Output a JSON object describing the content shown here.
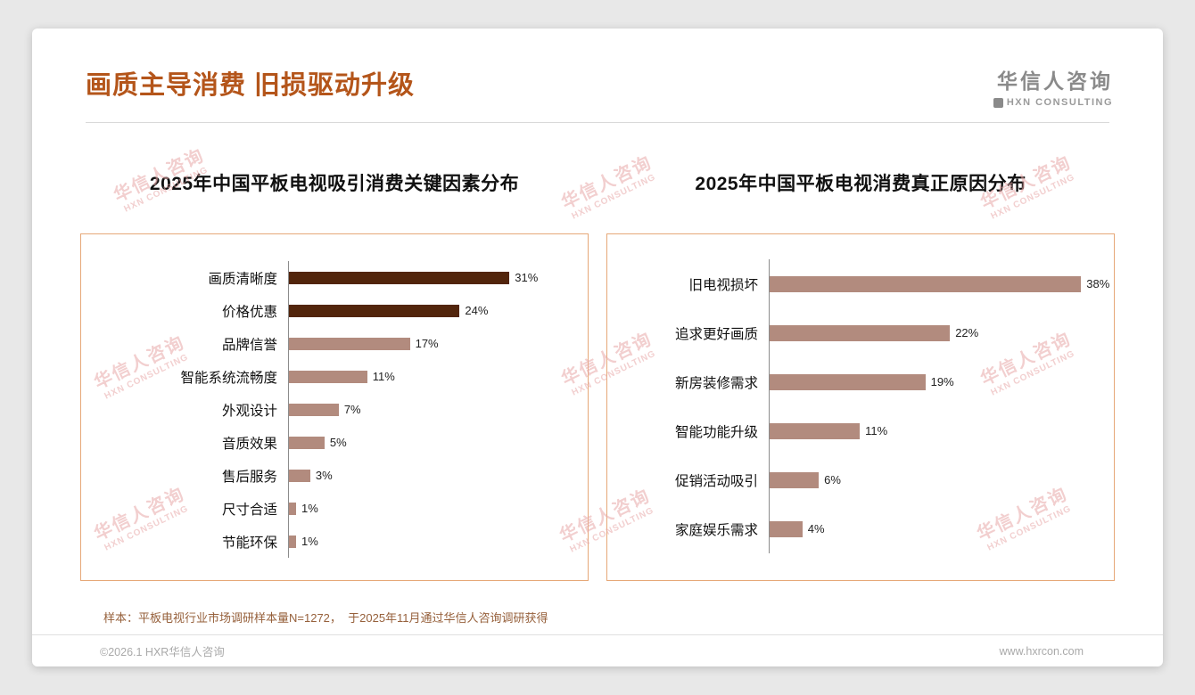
{
  "header": {
    "title": "画质主导消费 旧损驱动升级",
    "logo": {
      "name": "华信人咨询",
      "sub": "HXN CONSULTING"
    }
  },
  "watermark": {
    "line1": "华信人咨询",
    "line2": "HXN CONSULTING"
  },
  "colors": {
    "title": "#B4551A",
    "bar_dark": "#52250C",
    "bar_light": "#B28B7E",
    "chart_border": "#E6A878",
    "axis": "#8C8C8C",
    "watermark": "#E8A8A8",
    "footnote": "#96603B",
    "footer_text": "#A9A9A9",
    "logo_gray": "#8A8A8A"
  },
  "chart_data": [
    {
      "type": "bar",
      "orientation": "horizontal",
      "title": "2025年中国平板电视吸引消费关键因素分布",
      "categories": [
        "画质清晰度",
        "价格优惠",
        "品牌信誉",
        "智能系统流畅度",
        "外观设计",
        "音质效果",
        "售后服务",
        "尺寸合适",
        "节能环保"
      ],
      "values": [
        31,
        24,
        17,
        11,
        7,
        5,
        3,
        1,
        1
      ],
      "labels": [
        "31%",
        "24%",
        "17%",
        "11%",
        "7%",
        "5%",
        "3%",
        "1%",
        "1%"
      ],
      "colors": [
        "#52250C",
        "#52250C",
        "#B28B7E",
        "#B28B7E",
        "#B28B7E",
        "#B28B7E",
        "#B28B7E",
        "#B28B7E",
        "#B28B7E"
      ],
      "xlim": [
        0,
        42
      ],
      "unit": "%",
      "grid": false,
      "legend": false
    },
    {
      "type": "bar",
      "orientation": "horizontal",
      "title": "2025年中国平板电视消费真正原因分布",
      "categories": [
        "旧电视损坏",
        "追求更好画质",
        "新房装修需求",
        "智能功能升级",
        "促销活动吸引",
        "家庭娱乐需求"
      ],
      "values": [
        38,
        22,
        19,
        11,
        6,
        4
      ],
      "labels": [
        "38%",
        "22%",
        "19%",
        "11%",
        "6%",
        "4%"
      ],
      "colors": [
        "#B28B7E",
        "#B28B7E",
        "#B28B7E",
        "#B28B7E",
        "#B28B7E",
        "#B28B7E"
      ],
      "xlim": [
        0,
        42
      ],
      "unit": "%",
      "grid": false,
      "legend": false
    }
  ],
  "footer": {
    "note": "样本：平板电视行业市场调研样本量N=1272，  于2025年11月通过华信人咨询调研获得",
    "copyright": "©2026.1 HXR华信人咨询",
    "website": "www.hxrcon.com"
  }
}
